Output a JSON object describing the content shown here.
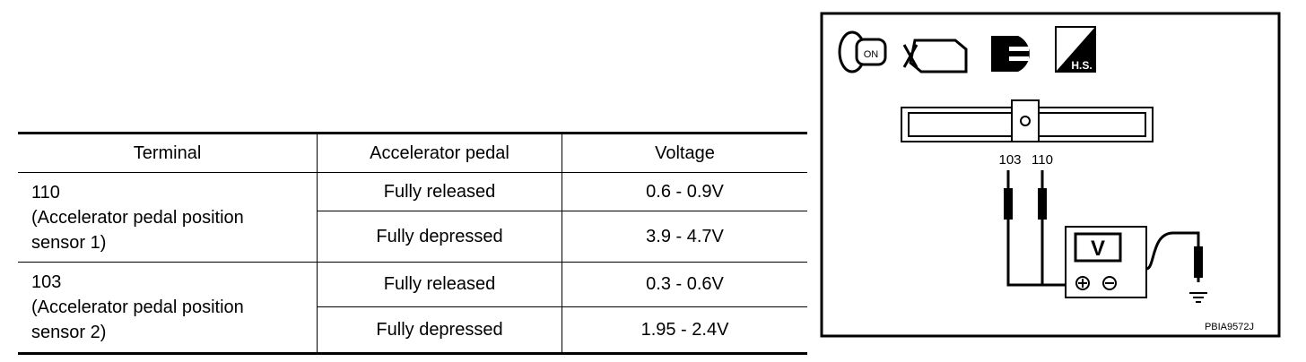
{
  "table": {
    "headers": [
      "Terminal",
      "Accelerator pedal",
      "Voltage"
    ],
    "rows": [
      {
        "terminal": "110",
        "description": "(Accelerator pedal position sensor 1)",
        "conditions": [
          [
            "Fully released",
            "0.6 - 0.9V"
          ],
          [
            "Fully depressed",
            "3.9 - 4.7V"
          ]
        ]
      },
      {
        "terminal": "103",
        "description": "(Accelerator pedal position sensor 2)",
        "conditions": [
          [
            "Fully released",
            "0.3 - 0.6V"
          ],
          [
            "Fully depressed",
            "1.95 - 2.4V"
          ]
        ]
      }
    ]
  },
  "diagram": {
    "icon_labels": [
      "ON",
      "H.S."
    ],
    "pins": [
      "103",
      "110"
    ],
    "meter": "V",
    "code": "PBIA9572J"
  }
}
